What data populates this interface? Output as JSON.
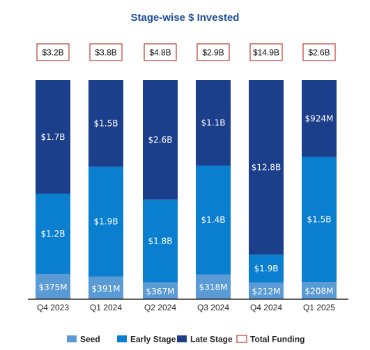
{
  "chart_data": {
    "type": "bar",
    "stacked": true,
    "title": "Stage-wise $ Invested",
    "categories": [
      "Q4 2023",
      "Q1 2024",
      "Q2 2024",
      "Q3 2024",
      "Q4 2024",
      "Q1 2025"
    ],
    "series": [
      {
        "name": "Seed",
        "color": "#5b9bd5",
        "values": [
          375,
          391,
          367,
          318,
          212,
          208
        ],
        "labels": [
          "$375M",
          "$391M",
          "$367M",
          "$318M",
          "$212M",
          "$208M"
        ]
      },
      {
        "name": "Early Stage",
        "color": "#0a7fcf",
        "values": [
          1200,
          1900,
          1800,
          1400,
          1900,
          1500
        ],
        "labels": [
          "$1.2B",
          "$1.9B",
          "$1.8B",
          "$1.4B",
          "$1.9B",
          "$1.5B"
        ]
      },
      {
        "name": "Late Stage",
        "color": "#1c3f8c",
        "values": [
          1700,
          1500,
          2600,
          1100,
          12800,
          924
        ],
        "labels": [
          "$1.7B",
          "$1.5B",
          "$2.6B",
          "$1.1B",
          "$12.8B",
          "$924M"
        ]
      }
    ],
    "totals": {
      "name": "Total Funding",
      "border_color": "#c0392b",
      "labels": [
        "$3.2B",
        "$3.8B",
        "$4.8B",
        "$2.9B",
        "$14.9B",
        "$2.6B"
      ]
    },
    "legend_position": "bottom",
    "grid": false,
    "title_color": "#1f4e9c"
  }
}
